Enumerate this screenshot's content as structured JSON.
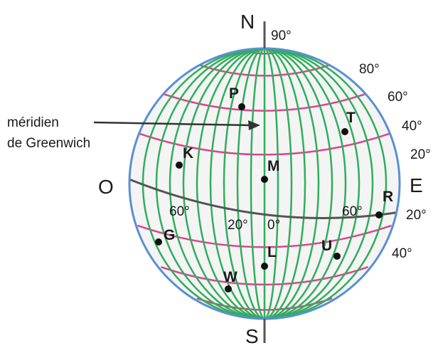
{
  "poles": {
    "north": "N",
    "south": "S"
  },
  "directions": {
    "west": "O",
    "east": "E"
  },
  "latitude_labels": {
    "deg90": "90°",
    "deg80": "80°",
    "deg60": "60°",
    "deg40n": "40°",
    "deg20n": "20°",
    "deg20s": "20°",
    "deg40s": "40°"
  },
  "longitude_labels": {
    "w60": "60°",
    "w20": "20°",
    "zero": "0°",
    "e60": "60°"
  },
  "meridian_caption": {
    "line1": "méridien",
    "line2": "de Greenwich"
  },
  "points": [
    {
      "id": "P"
    },
    {
      "id": "T"
    },
    {
      "id": "K"
    },
    {
      "id": "M"
    },
    {
      "id": "R"
    },
    {
      "id": "G"
    },
    {
      "id": "L"
    },
    {
      "id": "U"
    },
    {
      "id": "W"
    }
  ],
  "colors": {
    "meridian": "#2fae5c",
    "parallel": "#d9468c",
    "equator": "#555555",
    "outline": "#5a8fd6",
    "globe_fill": "#f4f4f4",
    "axis": "#555555"
  }
}
